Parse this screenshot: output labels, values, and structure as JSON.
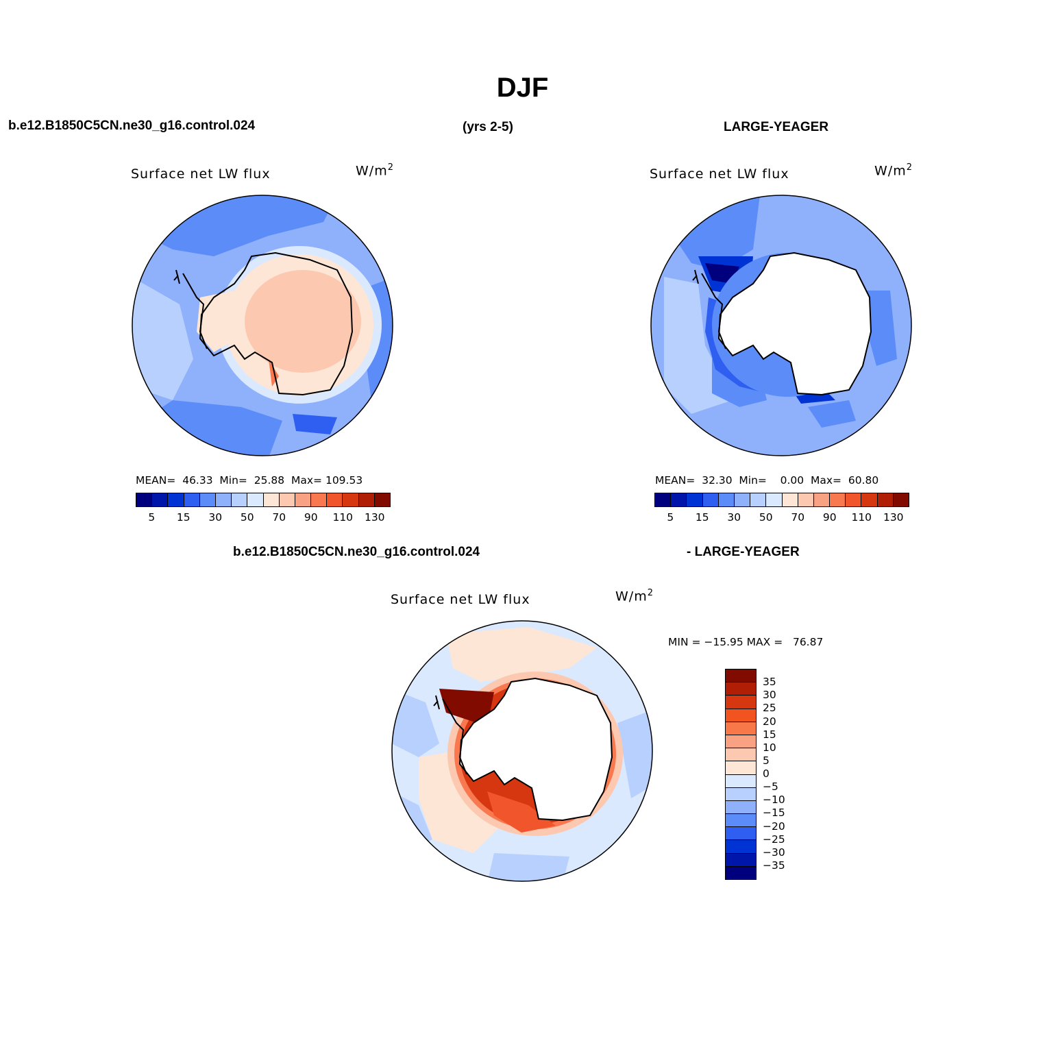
{
  "figure": {
    "title": "DJF",
    "case_name": "b.e12.B1850C5CN.ne30_g16.control.024",
    "years": "(yrs 2-5)",
    "reference": "LARGE-YEAGER",
    "diff_case": "b.e12.B1850C5CN.ne30_g16.control.024",
    "diff_reference": "- LARGE-YEAGER"
  },
  "panels": {
    "model": {
      "title": "Surface net LW flux",
      "units": "W/m",
      "units_exp": "2",
      "stats": "MEAN=  46.33  Min=  25.88  Max= 109.53"
    },
    "obs": {
      "title": "Surface net LW flux",
      "units": "W/m",
      "units_exp": "2",
      "stats": "MEAN=  32.30  Min=    0.00  Max=  60.80"
    },
    "diff": {
      "title": "Surface net LW flux",
      "units": "W/m",
      "units_exp": "2",
      "stats": "MIN = −15.95 MAX =   76.87"
    }
  },
  "colorbar_main": {
    "colors": [
      "#00007f",
      "#0015aa",
      "#0033d4",
      "#2f5ff0",
      "#5c8cf8",
      "#8fb0fb",
      "#b8d0fd",
      "#dbe9ff",
      "#fde6d6",
      "#fcc9b0",
      "#f9a183",
      "#f87950",
      "#f0552b",
      "#d63610",
      "#b01f05",
      "#820b00"
    ],
    "labels": [
      "5",
      "15",
      "30",
      "50",
      "70",
      "90",
      "110",
      "130"
    ]
  },
  "colorbar_diff": {
    "colors": [
      "#820b00",
      "#b01f05",
      "#d63610",
      "#f25420",
      "#f8784a",
      "#f9a183",
      "#fcc9b0",
      "#fde6d6",
      "#dbe9ff",
      "#b8d0fd",
      "#8fb0fb",
      "#5c8cf8",
      "#2f5ff0",
      "#0033d4",
      "#0015aa",
      "#00007f"
    ],
    "labels": [
      "35",
      "30",
      "25",
      "20",
      "15",
      "10",
      "5",
      "0",
      "−5",
      "−10",
      "−15",
      "−20",
      "−25",
      "−30",
      "−35"
    ]
  }
}
